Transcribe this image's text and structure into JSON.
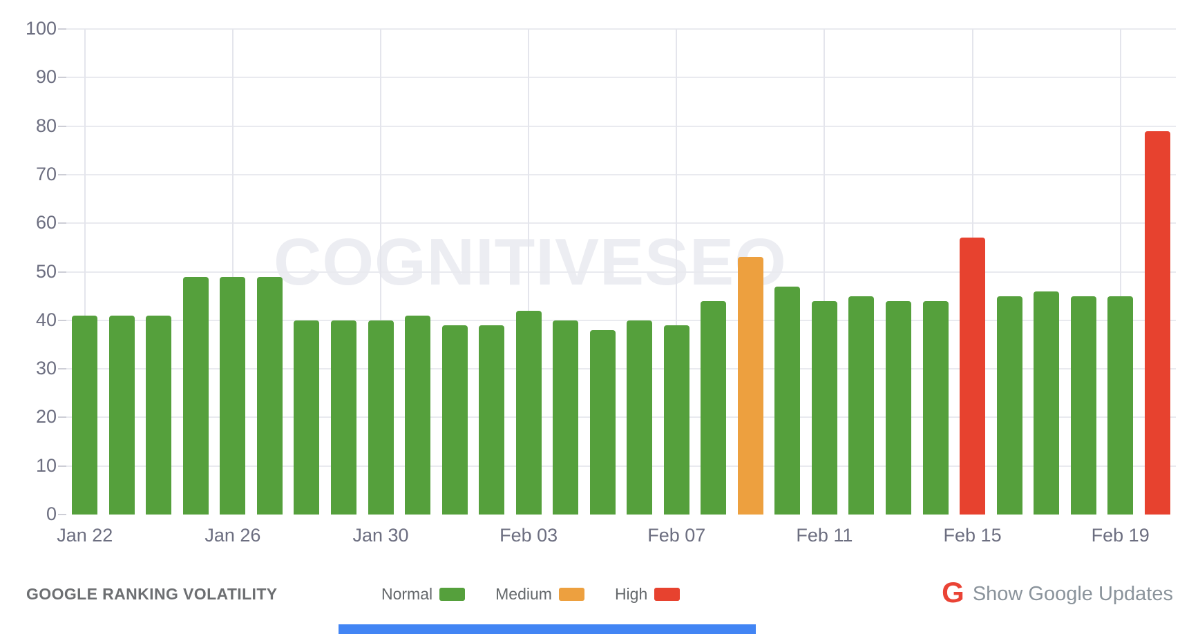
{
  "chart_data": {
    "type": "bar",
    "title": "GOOGLE RANKING VOLATILITY",
    "watermark": "COGNITIVESEO",
    "ylim": [
      0,
      100
    ],
    "y_ticks": [
      0,
      10,
      20,
      30,
      40,
      50,
      60,
      70,
      80,
      90,
      100
    ],
    "grid": true,
    "legend_position": "bottom",
    "x_tick_labels": [
      {
        "bar_index": 0,
        "label": "Jan 22"
      },
      {
        "bar_index": 4,
        "label": "Jan 26"
      },
      {
        "bar_index": 8,
        "label": "Jan 30"
      },
      {
        "bar_index": 12,
        "label": "Feb 03"
      },
      {
        "bar_index": 16,
        "label": "Feb 07"
      },
      {
        "bar_index": 20,
        "label": "Feb 11"
      },
      {
        "bar_index": 24,
        "label": "Feb 15"
      },
      {
        "bar_index": 28,
        "label": "Feb 19"
      }
    ],
    "series": [
      {
        "name": "Google ranking volatility",
        "values": [
          41,
          41,
          41,
          49,
          49,
          49,
          40,
          40,
          40,
          41,
          39,
          39,
          42,
          40,
          38,
          40,
          39,
          44,
          53,
          47,
          44,
          45,
          44,
          44,
          57,
          45,
          46,
          45,
          45,
          79
        ],
        "levels": [
          "normal",
          "normal",
          "normal",
          "normal",
          "normal",
          "normal",
          "normal",
          "normal",
          "normal",
          "normal",
          "normal",
          "normal",
          "normal",
          "normal",
          "normal",
          "normal",
          "normal",
          "normal",
          "medium",
          "normal",
          "normal",
          "normal",
          "normal",
          "normal",
          "high",
          "normal",
          "normal",
          "normal",
          "normal",
          "high"
        ]
      }
    ],
    "colors": {
      "normal": "#55a03c",
      "medium": "#eda03f",
      "high": "#e7422f",
      "axis_label": "#6c6e80",
      "watermark": "#ecedf2",
      "bottom_bar": "#4285f4",
      "google_g": "#ea4335"
    }
  },
  "footer": {
    "title": "GOOGLE RANKING VOLATILITY",
    "legend": [
      {
        "label": "Normal",
        "level": "normal",
        "color": "#55a03c"
      },
      {
        "label": "Medium",
        "level": "medium",
        "color": "#eda03f"
      },
      {
        "label": "High",
        "level": "high",
        "color": "#e7422f"
      }
    ],
    "google_updates": {
      "icon": "google-g-icon",
      "icon_glyph": "G",
      "label": "Show Google Updates"
    }
  }
}
